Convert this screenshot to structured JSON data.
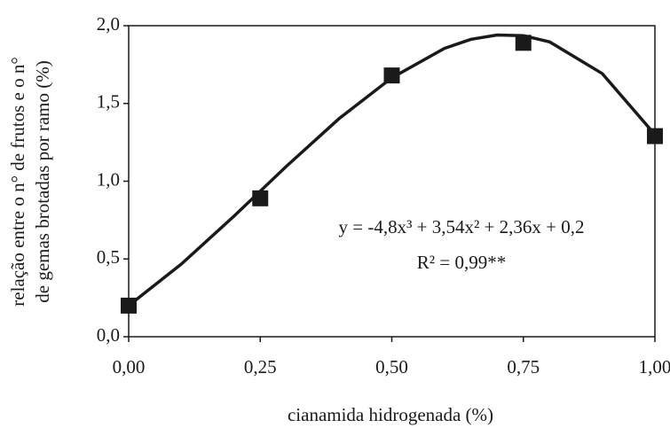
{
  "chart_data": {
    "type": "scatter",
    "xlabel": "cianamida hidrogenada (%)",
    "ylabel": [
      "relação entre o n° de frutos e o n°",
      "de gemas brotadas por ramo (%)"
    ],
    "x": [
      0,
      0.25,
      0.5,
      0.75,
      1
    ],
    "values": [
      0.2,
      0.89,
      1.68,
      1.89,
      1.29
    ],
    "color": "#1a1a1a",
    "fit": {
      "x": [
        0,
        0.1,
        0.2,
        0.3,
        0.4,
        0.5,
        0.6,
        0.65,
        0.7,
        0.75,
        0.8,
        0.9,
        1
      ],
      "values": [
        0.2,
        0.467,
        0.775,
        1.097,
        1.403,
        1.665,
        1.854,
        1.912,
        1.94,
        1.936,
        1.896,
        1.692,
        1.3
      ]
    },
    "annotations": [
      "y = -4,8x³ + 3,54x² + 2,36x + 0,2",
      "R² = 0,99**"
    ],
    "xlim": [
      0,
      1
    ],
    "ylim": [
      0,
      2
    ],
    "xticks": [
      {
        "value": 0,
        "label": "0,00"
      },
      {
        "value": 0.25,
        "label": "0,25"
      },
      {
        "value": 0.5,
        "label": "0,50"
      },
      {
        "value": 0.75,
        "label": "0,75"
      },
      {
        "value": 1,
        "label": "1,00"
      }
    ],
    "yticks": [
      {
        "value": 0,
        "label": "0,0"
      },
      {
        "value": 0.5,
        "label": "0,5"
      },
      {
        "value": 1,
        "label": "1,0"
      },
      {
        "value": 1.5,
        "label": "1,5"
      },
      {
        "value": 2,
        "label": "2,0"
      }
    ]
  }
}
